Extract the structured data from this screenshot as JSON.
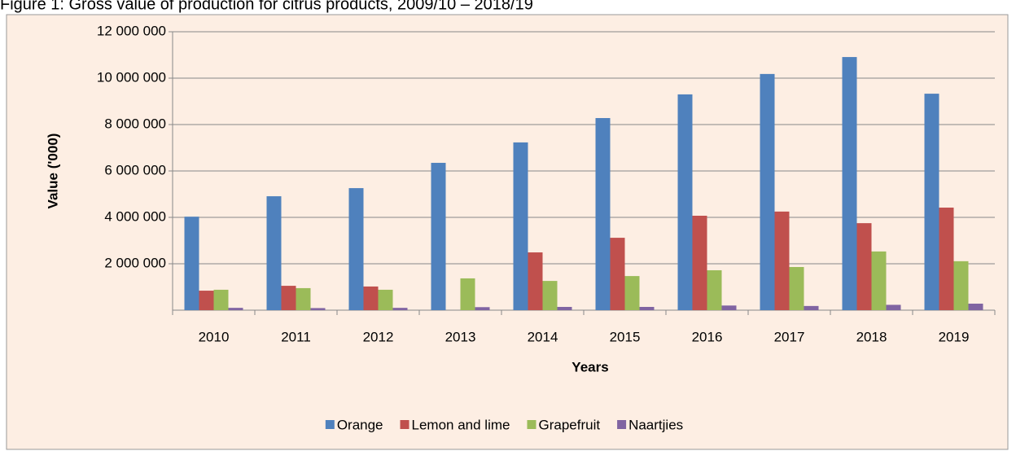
{
  "chart_data": {
    "type": "bar",
    "title": "Figure 1: Gross value of production for citrus products, 2009/10 – 2018/19",
    "x_label": "Years",
    "y_label": "Value ('000)",
    "categories": [
      "2010",
      "2011",
      "2012",
      "2013",
      "2014",
      "2015",
      "2016",
      "2017",
      "2018",
      "2019"
    ],
    "series": [
      {
        "name": "Orange",
        "color": "#4f81bd",
        "values": [
          4030000,
          4910000,
          5260000,
          6350000,
          7230000,
          8280000,
          9300000,
          10180000,
          10910000,
          9330000
        ]
      },
      {
        "name": "Lemon and lime",
        "color": "#c0504d",
        "values": [
          840000,
          1050000,
          1020000,
          0,
          2490000,
          3120000,
          4070000,
          4250000,
          3750000,
          4420000
        ]
      },
      {
        "name": "Grapefruit",
        "color": "#9bbb59",
        "values": [
          880000,
          950000,
          880000,
          1370000,
          1260000,
          1470000,
          1720000,
          1860000,
          2530000,
          2110000
        ]
      },
      {
        "name": "Naartjies",
        "color": "#8064a2",
        "values": [
          100000,
          90000,
          100000,
          130000,
          140000,
          140000,
          200000,
          180000,
          230000,
          280000
        ]
      }
    ],
    "ylim": [
      0,
      12000000
    ],
    "yticks": [
      {
        "value": 2000000,
        "label": "2 000 000"
      },
      {
        "value": 4000000,
        "label": "4 000 000"
      },
      {
        "value": 6000000,
        "label": "6 000 000"
      },
      {
        "value": 8000000,
        "label": "8 000 000"
      },
      {
        "value": 10000000,
        "label": "10 000 000"
      },
      {
        "value": 12000000,
        "label": "12 000 000"
      }
    ],
    "grid": true,
    "legend": "bottom"
  }
}
